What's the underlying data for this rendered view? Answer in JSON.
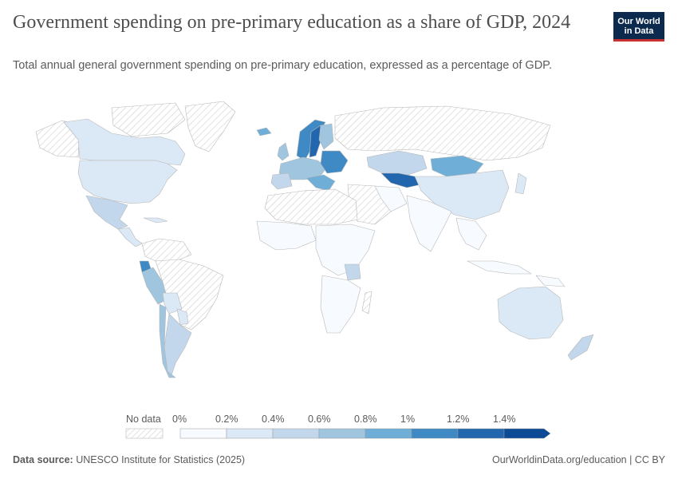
{
  "header": {
    "title": "Government spending on pre-primary education as a share of GDP, 2024",
    "subtitle": "Total annual general government spending on pre-primary education, expressed as a percentage of GDP."
  },
  "logo": {
    "line1": "Our World",
    "line2": "in Data",
    "bg": "#0b2a4e",
    "accent": "#c8302f"
  },
  "legend": {
    "no_data_label": "No data",
    "ticks": [
      "0%",
      "0.2%",
      "0.4%",
      "0.6%",
      "0.8%",
      "1%",
      "1.2%",
      "1.4%"
    ],
    "colors": [
      "#f7fbff",
      "#dbe8f5",
      "#c2d7ec",
      "#9fc5df",
      "#6faed6",
      "#3f8ac4",
      "#2266ad",
      "#0d4a96"
    ]
  },
  "chart_data": {
    "type": "map",
    "title": "Government spending on pre-primary education as a share of GDP, 2024",
    "unit": "% of GDP",
    "scale_min": 0,
    "scale_max": 1.4,
    "approximate_values": [
      {
        "region": "Canada",
        "value": 0.2
      },
      {
        "region": "United States",
        "value": 0.3
      },
      {
        "region": "Mexico",
        "value": 0.5
      },
      {
        "region": "Ecuador",
        "value": 1.1
      },
      {
        "region": "Peru",
        "value": 0.6
      },
      {
        "region": "Chile",
        "value": 0.6
      },
      {
        "region": "Argentina",
        "value": 0.4
      },
      {
        "region": "Iceland",
        "value": 0.9
      },
      {
        "region": "Sweden",
        "value": 1.2
      },
      {
        "region": "Norway",
        "value": 1.0
      },
      {
        "region": "Finland",
        "value": 0.6
      },
      {
        "region": "Russia",
        "value": null
      },
      {
        "region": "Kazakhstan",
        "value": 0.3
      },
      {
        "region": "Uzbekistan",
        "value": 1.1
      },
      {
        "region": "Mongolia",
        "value": 0.9
      },
      {
        "region": "China",
        "value": 0.3
      },
      {
        "region": "India",
        "value": 0.05
      },
      {
        "region": "Australia",
        "value": 0.2
      },
      {
        "region": "New Zealand",
        "value": 0.4
      },
      {
        "region": "Tanzania",
        "value": 0.4
      },
      {
        "region": "Greenland",
        "value": null
      }
    ]
  },
  "footer": {
    "source_label": "Data source:",
    "source_text": "UNESCO Institute for Statistics (2025)",
    "right_text": "OurWorldinData.org/education | CC BY"
  }
}
